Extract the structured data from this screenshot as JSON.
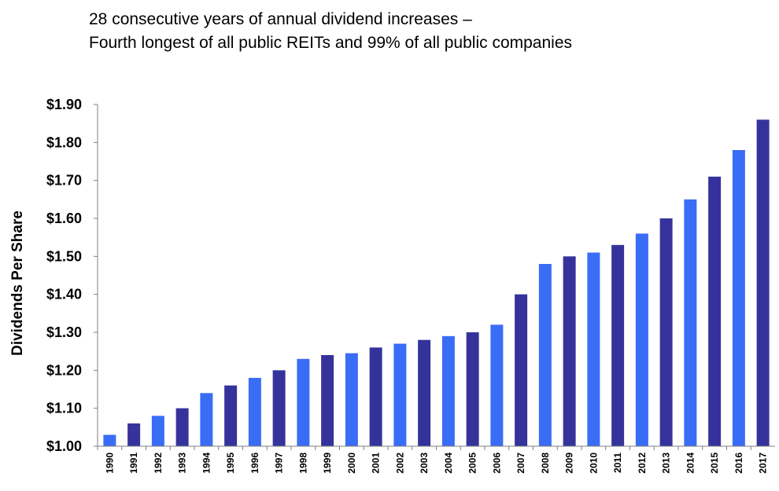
{
  "title_line1": "28 consecutive years of annual dividend increases –",
  "title_line2": "Fourth longest of all public REITs and 99% of all public companies",
  "chart_data": {
    "type": "bar",
    "title": "28 consecutive years of annual dividend increases – Fourth longest of all public REITs and 99% of all public companies",
    "xlabel": "",
    "ylabel": "Dividends Per Share",
    "ylim": [
      1.0,
      1.9
    ],
    "yticks": [
      "$1.00",
      "$1.10",
      "$1.20",
      "$1.30",
      "$1.40",
      "$1.50",
      "$1.60",
      "$1.70",
      "$1.80",
      "$1.90"
    ],
    "ytick_values": [
      1.0,
      1.1,
      1.2,
      1.3,
      1.4,
      1.5,
      1.6,
      1.7,
      1.8,
      1.9
    ],
    "grid": false,
    "legend": "none",
    "bar_colors": [
      "#3a6df6",
      "#35339b"
    ],
    "axis_color": "#7f7f7f",
    "categories": [
      "1990",
      "1991",
      "1992",
      "1993",
      "1994",
      "1995",
      "1996",
      "1997",
      "1998",
      "1999",
      "2000",
      "2001",
      "2002",
      "2003",
      "2004",
      "2005",
      "2006",
      "2007",
      "2008",
      "2009",
      "2010",
      "2011",
      "2012",
      "2013",
      "2014",
      "2015",
      "2016",
      "2017"
    ],
    "values": [
      1.03,
      1.06,
      1.08,
      1.1,
      1.14,
      1.16,
      1.18,
      1.2,
      1.23,
      1.24,
      1.245,
      1.26,
      1.27,
      1.28,
      1.29,
      1.3,
      1.32,
      1.4,
      1.48,
      1.5,
      1.51,
      1.53,
      1.56,
      1.6,
      1.65,
      1.71,
      1.78,
      1.86
    ]
  }
}
